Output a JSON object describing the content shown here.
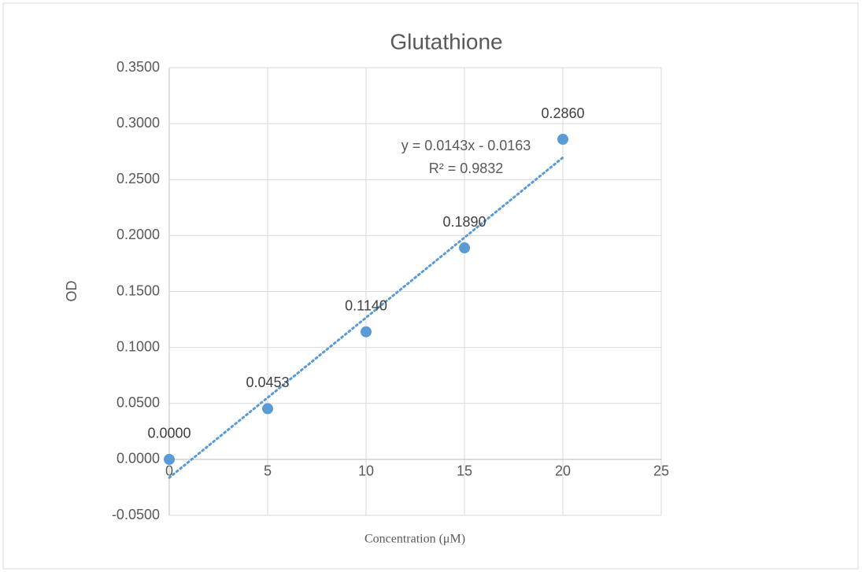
{
  "chart_data": {
    "type": "scatter",
    "title": "Glutathione",
    "x_label": "Concentration (μM)",
    "y_label": "OD",
    "series": [
      {
        "name": "OD",
        "color": "#5b9bd5",
        "x": [
          0,
          5,
          10,
          15,
          20
        ],
        "values": [
          0,
          0.0453,
          0.114,
          0.189,
          0.286
        ],
        "value_labels": [
          "0.0000",
          "0.0453",
          "0.1140",
          "0.1890",
          "0.2860"
        ]
      }
    ],
    "trendline": {
      "slope": 0.0143,
      "intercept": -0.0163,
      "equation": "y = 0.0143x - 0.0163",
      "r_squared": "R² = 0.9832"
    },
    "xlim": [
      0,
      25
    ],
    "xticks": [
      0,
      5,
      10,
      15,
      20,
      25
    ],
    "ylim": [
      -0.05,
      0.35
    ],
    "yticks": [
      {
        "value": -0.05,
        "label": "-0.0500"
      },
      {
        "value": 0,
        "label": "0.0000"
      },
      {
        "value": 0.05,
        "label": "0.0500"
      },
      {
        "value": 0.1,
        "label": "0.1000"
      },
      {
        "value": 0.15,
        "label": "0.1500"
      },
      {
        "value": 0.2,
        "label": "0.2000"
      },
      {
        "value": 0.25,
        "label": "0.2500"
      },
      {
        "value": 0.3,
        "label": "0.3000"
      },
      {
        "value": 0.35,
        "label": "0.3500"
      }
    ],
    "grid": true
  }
}
